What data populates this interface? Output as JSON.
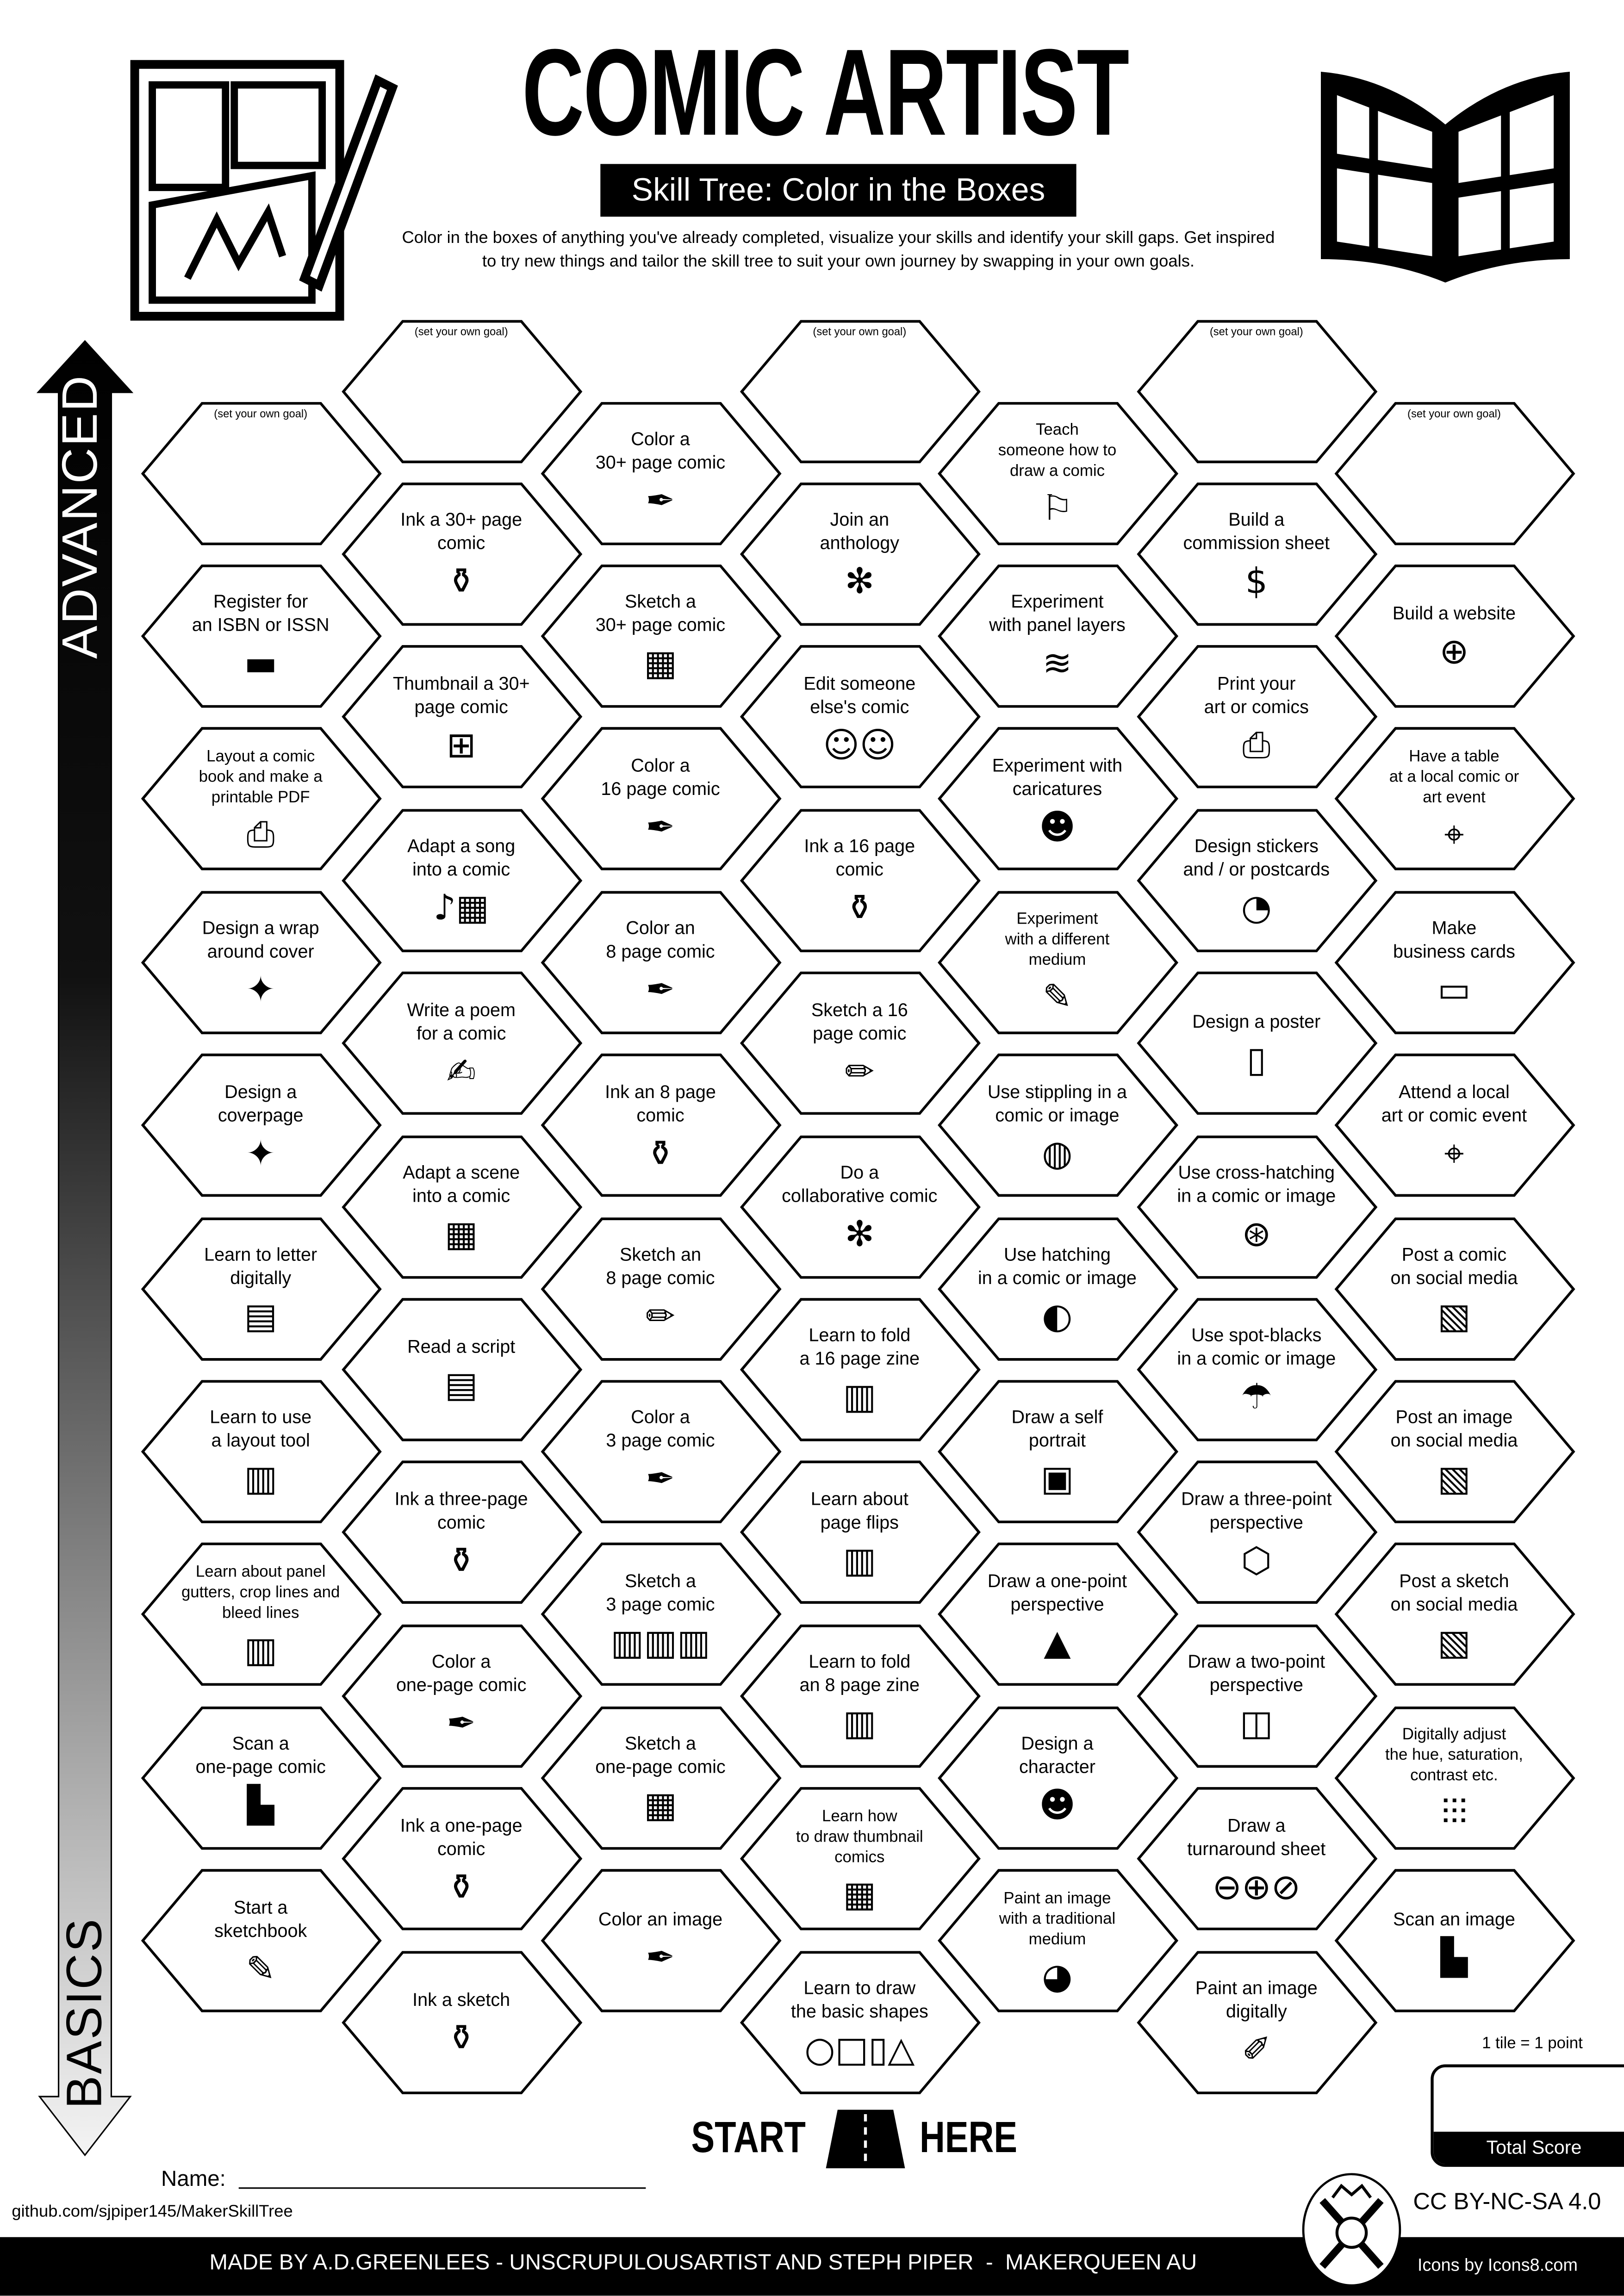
{
  "header": {
    "title": "COMIC ARTIST",
    "subtitle": "Skill Tree: Color in the Boxes",
    "description_lines": [
      "Color in the boxes of anything you've already completed, visualize your skills and identify your skill gaps.  Get inspired",
      "to try new things and tailor the skill tree to suit your own journey by swapping in your own goals."
    ],
    "left_icon": "comic-drawing-icon",
    "right_icon": "open-comic-book-icon"
  },
  "axis": {
    "top_label": "ADVANCED",
    "bottom_label": "BASICS"
  },
  "goal_text": "(set your own goal)",
  "columns": [
    {
      "tiles": [
        {
          "goal": true
        },
        {
          "lines": [
            "Register for",
            "an ISBN or ISSN"
          ],
          "icon": "isbn"
        },
        {
          "lines": [
            "Layout a comic",
            "book and make a",
            "printable PDF"
          ],
          "icon": "printer"
        },
        {
          "lines": [
            "Design a wrap",
            "around cover"
          ],
          "icon": "book-star"
        },
        {
          "lines": [
            "Design a",
            "coverpage"
          ],
          "icon": "book-star"
        },
        {
          "lines": [
            "Learn to letter",
            "digitally"
          ],
          "icon": "chat"
        },
        {
          "lines": [
            "Learn to use",
            "a layout tool"
          ],
          "icon": "layout"
        },
        {
          "lines": [
            "Learn about panel",
            "gutters, crop lines and",
            "bleed lines"
          ],
          "icon": "layout"
        },
        {
          "lines": [
            "Scan a",
            "one-page comic"
          ],
          "icon": "scanner"
        },
        {
          "lines": [
            "Start a",
            "sketchbook"
          ],
          "icon": "sketchbook"
        }
      ]
    },
    {
      "tiles": [
        {
          "goal": true
        },
        {
          "lines": [
            "Ink a 30+ page",
            "comic"
          ],
          "icon": "ink"
        },
        {
          "lines": [
            "Thumbnail a 30+",
            "page comic"
          ],
          "icon": "thumbnail-grid"
        },
        {
          "lines": [
            "Adapt a song",
            "into a comic"
          ],
          "icon": "music"
        },
        {
          "lines": [
            "Write a poem",
            "for a comic"
          ],
          "icon": "poem"
        },
        {
          "lines": [
            "Adapt a scene",
            "into a comic"
          ],
          "icon": "sketch-comic"
        },
        {
          "lines": [
            "Read a script"
          ],
          "icon": "script"
        },
        {
          "lines": [
            "Ink a three-page",
            "comic"
          ],
          "icon": "ink"
        },
        {
          "lines": [
            "Color a",
            "one-page comic"
          ],
          "icon": "pen"
        },
        {
          "lines": [
            "Ink a one-page",
            "comic"
          ],
          "icon": "ink"
        },
        {
          "lines": [
            "Ink a sketch"
          ],
          "icon": "ink"
        }
      ]
    },
    {
      "tiles": [
        {
          "lines": [
            "Color a",
            "30+ page comic"
          ],
          "icon": "pen"
        },
        {
          "lines": [
            "Sketch a",
            "30+ page comic"
          ],
          "icon": "sketch-comic"
        },
        {
          "lines": [
            "Color a",
            "16 page comic"
          ],
          "icon": "pen"
        },
        {
          "lines": [
            "Color an",
            "8 page comic"
          ],
          "icon": "pen"
        },
        {
          "lines": [
            "Ink an 8 page",
            "comic"
          ],
          "icon": "ink"
        },
        {
          "lines": [
            "Sketch an",
            "8 page comic"
          ],
          "icon": "pencil"
        },
        {
          "lines": [
            "Color a",
            "3 page comic"
          ],
          "icon": "pen"
        },
        {
          "lines": [
            "Sketch a",
            "3 page comic"
          ],
          "icon": "three-layouts"
        },
        {
          "lines": [
            "Sketch a",
            "one-page comic"
          ],
          "icon": "sketch-comic"
        },
        {
          "lines": [
            "Color an image"
          ],
          "icon": "pen"
        }
      ]
    },
    {
      "tiles": [
        {
          "goal": true
        },
        {
          "lines": [
            "Join an",
            "anthology"
          ],
          "icon": "network"
        },
        {
          "lines": [
            "Edit someone",
            "else's comic"
          ],
          "icon": "editors"
        },
        {
          "lines": [
            "Ink a 16 page",
            "comic"
          ],
          "icon": "ink"
        },
        {
          "lines": [
            "Sketch a 16",
            "page comic"
          ],
          "icon": "pencil"
        },
        {
          "lines": [
            "Do a",
            "collaborative comic"
          ],
          "icon": "network"
        },
        {
          "lines": [
            "Learn to fold",
            "a 16 page zine"
          ],
          "icon": "zine"
        },
        {
          "lines": [
            "Learn about",
            "page flips"
          ],
          "icon": "zine"
        },
        {
          "lines": [
            "Learn to fold",
            "an 8 page zine"
          ],
          "icon": "zine"
        },
        {
          "lines": [
            "Learn how",
            "to draw thumbnail",
            "comics"
          ],
          "icon": "sketch-comic"
        },
        {
          "lines": [
            "Learn to draw",
            "the basic shapes"
          ],
          "icon": "shapes"
        }
      ]
    },
    {
      "tiles": [
        {
          "lines": [
            "Teach",
            "someone how to",
            "draw a comic"
          ],
          "icon": "teacher"
        },
        {
          "lines": [
            "Experiment",
            "with panel layers"
          ],
          "icon": "layers"
        },
        {
          "lines": [
            "Experiment with",
            "caricatures"
          ],
          "icon": "caricature"
        },
        {
          "lines": [
            "Experiment",
            "with a different",
            "medium"
          ],
          "icon": "highlighter"
        },
        {
          "lines": [
            "Use stippling in a",
            "comic or image"
          ],
          "icon": "stippling"
        },
        {
          "lines": [
            "Use hatching",
            "in a comic or image"
          ],
          "icon": "hatching"
        },
        {
          "lines": [
            "Draw a self",
            "portrait"
          ],
          "icon": "portrait"
        },
        {
          "lines": [
            "Draw a one-point",
            "perspective"
          ],
          "icon": "one-point"
        },
        {
          "lines": [
            "Design a",
            "character"
          ],
          "icon": "character"
        },
        {
          "lines": [
            "Paint an image",
            "with a traditional",
            "medium"
          ],
          "icon": "palette"
        }
      ]
    },
    {
      "tiles": [
        {
          "goal": true
        },
        {
          "lines": [
            "Build a",
            "commission sheet"
          ],
          "icon": "money-bag"
        },
        {
          "lines": [
            "Print your",
            "art or comics"
          ],
          "icon": "printer"
        },
        {
          "lines": [
            "Design stickers",
            "and / or postcards"
          ],
          "icon": "sticker"
        },
        {
          "lines": [
            "Design a poster"
          ],
          "icon": "poster"
        },
        {
          "lines": [
            "Use cross-hatching",
            "in a comic or image"
          ],
          "icon": "cross-hatching"
        },
        {
          "lines": [
            "Use spot-blacks",
            "in a comic or image"
          ],
          "icon": "umbrella"
        },
        {
          "lines": [
            "Draw a three-point",
            "perspective"
          ],
          "icon": "cube"
        },
        {
          "lines": [
            "Draw a two-point",
            "perspective"
          ],
          "icon": "two-point"
        },
        {
          "lines": [
            "Draw a",
            "turnaround sheet"
          ],
          "icon": "turnaround"
        },
        {
          "lines": [
            "Paint an image",
            "digitally"
          ],
          "icon": "digital-paint"
        }
      ]
    },
    {
      "tiles": [
        {
          "goal": true
        },
        {
          "lines": [
            "Build a website"
          ],
          "icon": "www"
        },
        {
          "lines": [
            "Have a table",
            "at a local comic or",
            "art event"
          ],
          "icon": "pin"
        },
        {
          "lines": [
            "Make",
            "business cards"
          ],
          "icon": "card"
        },
        {
          "lines": [
            "Attend a local",
            "art or comic event"
          ],
          "icon": "pin"
        },
        {
          "lines": [
            "Post a comic",
            "on social media"
          ],
          "icon": "image"
        },
        {
          "lines": [
            "Post an image",
            "on social media"
          ],
          "icon": "image"
        },
        {
          "lines": [
            "Post a sketch",
            "on social media"
          ],
          "icon": "image"
        },
        {
          "lines": [
            "Digitally adjust",
            "the hue, saturation,",
            "contrast etc."
          ],
          "icon": "sliders"
        },
        {
          "lines": [
            "Scan an image"
          ],
          "icon": "scanner"
        }
      ]
    }
  ],
  "start": {
    "left": "START",
    "right": "HERE",
    "icon": "road-icon"
  },
  "score": {
    "rule": "1 tile = 1 point",
    "label": "Total Score"
  },
  "name_label": "Name:",
  "github": "github.com/sjpiper145/MakerSkillTree",
  "license": "CC BY-NC-SA 4.0",
  "credits": "MADE BY A.D.GREENLEES - UNSCRUPULOUSARTIST AND STEPH PIPER  -  MAKERQUEEN AU",
  "icons_credit": "Icons by Icons8.com",
  "colors": {
    "ink": "#000000",
    "paper": "#ffffff",
    "arrow_bottom": "#eeeeee"
  }
}
